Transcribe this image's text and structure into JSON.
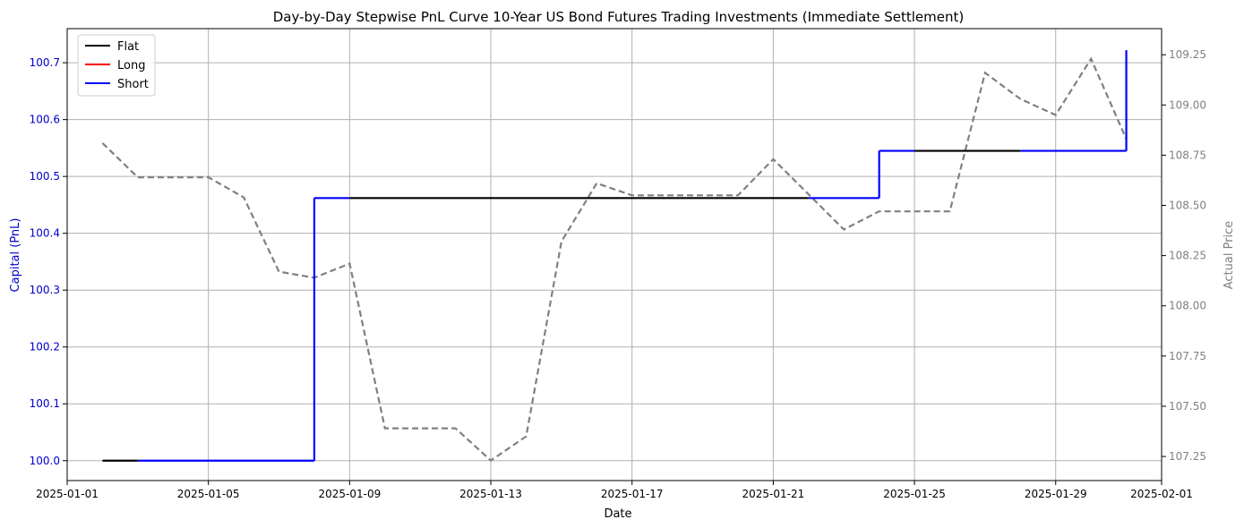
{
  "chart_data": {
    "type": "line",
    "title": "Day-by-Day Stepwise PnL Curve 10-Year US Bond Futures Trading Investments (Immediate Settlement)",
    "xlabel": "Date",
    "ylabel_left": "Capital (PnL)",
    "ylabel_right": "Actual Price",
    "xlim": [
      "2025-01-01",
      "2025-02-01"
    ],
    "ylim_left": [
      99.965,
      100.76
    ],
    "ylim_right": [
      107.13,
      109.38
    ],
    "x_ticks": [
      "2025-01-01",
      "2025-01-05",
      "2025-01-09",
      "2025-01-13",
      "2025-01-17",
      "2025-01-21",
      "2025-01-25",
      "2025-01-29",
      "2025-02-01"
    ],
    "y_ticks_left": [
      "100.0",
      "100.1",
      "100.2",
      "100.3",
      "100.4",
      "100.5",
      "100.6",
      "100.7"
    ],
    "y_ticks_right": [
      "107.25",
      "107.50",
      "107.75",
      "108.00",
      "108.25",
      "108.50",
      "108.75",
      "109.00",
      "109.25"
    ],
    "grid": true,
    "legend_position": "top-left",
    "legend": [
      {
        "name": "Flat",
        "color": "#000000"
      },
      {
        "name": "Long",
        "color": "#ff0000"
      },
      {
        "name": "Short",
        "color": "#0000ff"
      }
    ],
    "colors": {
      "flat": "#000000",
      "long": "#ff0000",
      "short": "#0000ff",
      "price": "#808080",
      "left_axis": "#0000cc",
      "right_axis": "#808080"
    },
    "pnl_segments": [
      {
        "start": "2025-01-02",
        "end": "2025-01-03",
        "value": 100.0,
        "position": "flat"
      },
      {
        "start": "2025-01-03",
        "end": "2025-01-08",
        "value": 100.0,
        "position": "short"
      },
      {
        "start": "2025-01-08",
        "end": "2025-01-09",
        "value": 100.462,
        "position": "short"
      },
      {
        "start": "2025-01-09",
        "end": "2025-01-22",
        "value": 100.462,
        "position": "flat"
      },
      {
        "start": "2025-01-22",
        "end": "2025-01-24",
        "value": 100.462,
        "position": "short"
      },
      {
        "start": "2025-01-24",
        "end": "2025-01-25",
        "value": 100.545,
        "position": "short"
      },
      {
        "start": "2025-01-25",
        "end": "2025-01-28",
        "value": 100.545,
        "position": "flat"
      },
      {
        "start": "2025-01-28",
        "end": "2025-01-31",
        "value": 100.545,
        "position": "short"
      },
      {
        "start": "2025-01-31",
        "end": "2025-01-31",
        "value": 100.722,
        "position": "short"
      }
    ],
    "price_series": {
      "name": "Actual Price",
      "x": [
        "2025-01-02",
        "2025-01-03",
        "2025-01-05",
        "2025-01-06",
        "2025-01-07",
        "2025-01-08",
        "2025-01-09",
        "2025-01-10",
        "2025-01-12",
        "2025-01-13",
        "2025-01-14",
        "2025-01-15",
        "2025-01-16",
        "2025-01-17",
        "2025-01-20",
        "2025-01-21",
        "2025-01-23",
        "2025-01-24",
        "2025-01-26",
        "2025-01-27",
        "2025-01-28",
        "2025-01-29",
        "2025-01-30",
        "2025-01-31"
      ],
      "y": [
        108.81,
        108.64,
        108.64,
        108.54,
        108.17,
        108.14,
        108.21,
        107.39,
        107.39,
        107.23,
        107.35,
        108.32,
        108.61,
        108.55,
        108.55,
        108.73,
        108.38,
        108.47,
        108.47,
        109.16,
        109.03,
        108.95,
        109.23,
        108.83
      ]
    }
  }
}
